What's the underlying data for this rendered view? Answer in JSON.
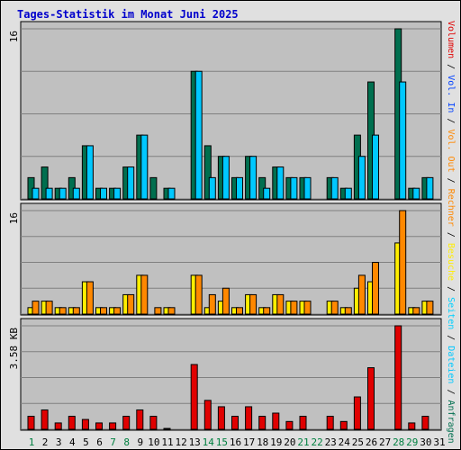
{
  "title": "Tages-Statistik im Monat Juni 2025",
  "colors": {
    "anfragen": "#006f4f",
    "dateien": "#00c8ff",
    "seiten": "#00d0ff",
    "besuche": "#ffee00",
    "rechner": "#ff8800",
    "vol_out": "#ff8800",
    "vol_in": "#0040ff",
    "volumen": "#e00000",
    "title": "#0000cc",
    "day_weekday": "#000000",
    "day_weekend": "#008040",
    "plot_bg": "#c0c0c0"
  },
  "legend": {
    "anfragen": "Anfragen",
    "dateien": "Dateien",
    "seiten": "Seiten",
    "besuche": "Besuche",
    "rechner": "Rechner",
    "vol_out": "Vol. Out",
    "vol_in": "Vol. In",
    "volumen": "Volumen"
  },
  "chart_data": [
    {
      "type": "bar",
      "panel": "Anfragen / Dateien",
      "ymax_label": "16",
      "ylim": [
        0,
        16
      ],
      "grid": true,
      "categories": [
        "1",
        "2",
        "3",
        "4",
        "5",
        "6",
        "7",
        "8",
        "9",
        "10",
        "11",
        "12",
        "13",
        "14",
        "15",
        "16",
        "17",
        "18",
        "19",
        "20",
        "21",
        "22",
        "23",
        "24",
        "25",
        "26",
        "27",
        "28",
        "29",
        "30",
        "31"
      ],
      "series": [
        {
          "name": "Anfragen",
          "values": [
            2,
            3,
            1,
            2,
            5,
            1,
            1,
            3,
            6,
            2,
            1,
            0,
            12,
            5,
            4,
            2,
            4,
            2,
            3,
            2,
            2,
            0,
            2,
            1,
            6,
            11,
            0,
            16,
            1,
            2,
            0
          ]
        },
        {
          "name": "Dateien",
          "values": [
            1,
            1,
            1,
            1,
            5,
            1,
            1,
            3,
            6,
            0,
            1,
            0,
            12,
            2,
            4,
            2,
            4,
            1,
            3,
            2,
            2,
            0,
            2,
            1,
            4,
            6,
            0,
            11,
            1,
            2,
            0
          ]
        }
      ]
    },
    {
      "type": "bar",
      "panel": "Besuche / Rechner",
      "ymax_label": "16",
      "ylim": [
        0,
        16
      ],
      "grid": true,
      "categories": [
        "1",
        "2",
        "3",
        "4",
        "5",
        "6",
        "7",
        "8",
        "9",
        "10",
        "11",
        "12",
        "13",
        "14",
        "15",
        "16",
        "17",
        "18",
        "19",
        "20",
        "21",
        "22",
        "23",
        "24",
        "25",
        "26",
        "27",
        "28",
        "29",
        "30",
        "31"
      ],
      "series": [
        {
          "name": "Besuche",
          "values": [
            1,
            2,
            1,
            1,
            5,
            1,
            1,
            3,
            6,
            0,
            1,
            0,
            6,
            1,
            2,
            1,
            3,
            1,
            3,
            2,
            2,
            0,
            2,
            1,
            4,
            5,
            0,
            11,
            1,
            2,
            0
          ]
        },
        {
          "name": "Rechner",
          "values": [
            2,
            2,
            1,
            1,
            5,
            1,
            1,
            3,
            6,
            1,
            1,
            0,
            6,
            3,
            4,
            1,
            3,
            1,
            3,
            2,
            2,
            0,
            2,
            1,
            6,
            8,
            0,
            16,
            1,
            2,
            0
          ]
        }
      ]
    },
    {
      "type": "bar",
      "panel": "Volumen",
      "ymax_label": "3.58 KB",
      "ylim": [
        0,
        3.58
      ],
      "grid": true,
      "categories": [
        "1",
        "2",
        "3",
        "4",
        "5",
        "6",
        "7",
        "8",
        "9",
        "10",
        "11",
        "12",
        "13",
        "14",
        "15",
        "16",
        "17",
        "18",
        "19",
        "20",
        "21",
        "22",
        "23",
        "24",
        "25",
        "26",
        "27",
        "28",
        "29",
        "30",
        "31"
      ],
      "series": [
        {
          "name": "Volumen",
          "values": [
            0.45,
            0.67,
            0.22,
            0.45,
            0.34,
            0.22,
            0.22,
            0.45,
            0.67,
            0.45,
            0.03,
            0,
            2.24,
            1.0,
            0.78,
            0.45,
            0.78,
            0.45,
            0.56,
            0.27,
            0.45,
            0,
            0.45,
            0.27,
            1.12,
            2.13,
            0,
            3.58,
            0.22,
            0.45,
            0
          ]
        }
      ]
    }
  ],
  "weekend_days": [
    1,
    7,
    8,
    14,
    15,
    21,
    22,
    28,
    29
  ]
}
